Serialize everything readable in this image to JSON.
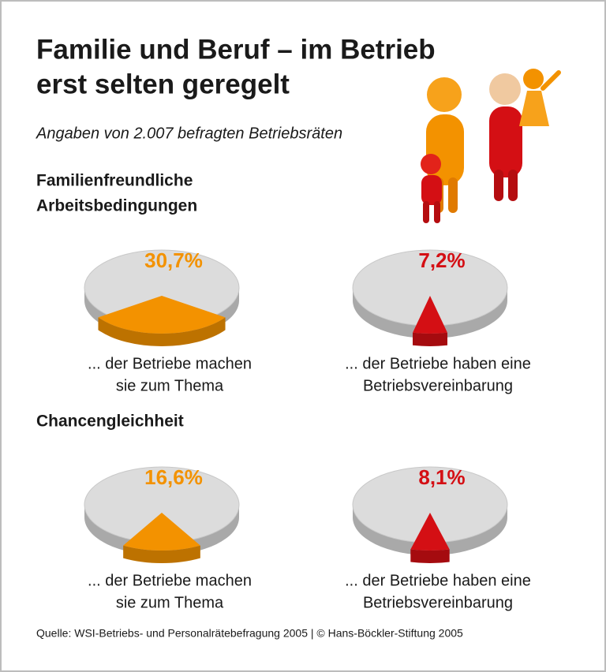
{
  "title": [
    "Familie und Beruf – im Betrieb",
    "erst selten geregelt"
  ],
  "subtitle": "Angaben von 2.007 befragten Betriebsräten",
  "sections": [
    {
      "heading": [
        "Familienfreundliche",
        "Arbeitsbedingungen"
      ]
    },
    {
      "heading": [
        "Chancengleichheit"
      ]
    }
  ],
  "source": "Quelle: WSI-Betriebs- und Personalrätebefragung 2005 | © Hans-Böckler-Stiftung 2005",
  "chart_data": [
    {
      "type": "pie",
      "values": [
        30.7
      ],
      "value_labels": [
        "30,7%"
      ],
      "color": "#f39200",
      "caption": [
        "... der Betriebe machen",
        "sie zum Thema"
      ]
    },
    {
      "type": "pie",
      "values": [
        7.2
      ],
      "value_labels": [
        "7,2%"
      ],
      "color": "#d40f14",
      "caption": [
        "... der Betriebe haben eine",
        "Betriebsvereinbarung"
      ]
    },
    {
      "type": "pie",
      "values": [
        16.6
      ],
      "value_labels": [
        "16,6%"
      ],
      "color": "#f39200",
      "caption": [
        "... der Betriebe machen",
        "sie zum Thema"
      ]
    },
    {
      "type": "pie",
      "values": [
        8.1
      ],
      "value_labels": [
        "8,1%"
      ],
      "color": "#d40f14",
      "caption": [
        "... der Betriebe haben eine",
        "Betriebsvereinbarung"
      ]
    }
  ]
}
